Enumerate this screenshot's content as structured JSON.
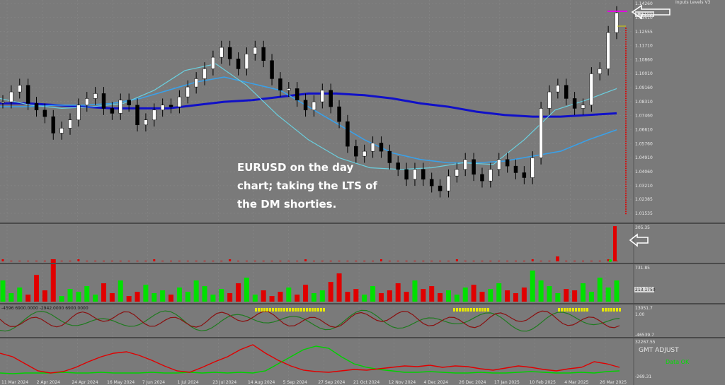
{
  "header": {
    "title": "Inputs Levels V3"
  },
  "annotation": {
    "text": "EURUSD on the day chart; taking the LTS of the DM shorties."
  },
  "colors": {
    "background": "#7a7a7a",
    "grid": "#8c8c8c",
    "candle_up": "#ffffff",
    "candle_down": "#000000",
    "ma_long": "#1010c8",
    "ma_mid": "#3aa0e8",
    "ma_short": "#6ad0e0",
    "up_volume": "#00e000",
    "down_volume": "#e00000",
    "arrow": "#ffffff"
  },
  "icons": {
    "arrow_top": "left-arrow-icon",
    "arrow_mid": "left-arrow-icon"
  },
  "chart_data": {
    "type": "candlestick",
    "symbol": "EURUSD",
    "timeframe": "D1",
    "price_ticks": [
      "1.14260",
      "1.13410",
      "1.12555",
      "1.11710",
      "1.10860",
      "1.10010",
      "1.09160",
      "1.08310",
      "1.07460",
      "1.06610",
      "1.05760",
      "1.04910",
      "1.04060",
      "1.03210",
      "1.02385",
      "1.01535"
    ],
    "current_price": "1.13699",
    "date_ticks": [
      "11 Mar 2024",
      "2 Apr 2024",
      "24 Apr 2024",
      "16 May 2024",
      "7 Jun 2024",
      "1 Jul 2024",
      "23 Jul 2024",
      "14 Aug 2024",
      "5 Sep 2024",
      "27 Sep 2024",
      "21 Oct 2024",
      "12 Nov 2024",
      "4 Dec 2024",
      "26 Dec 2024",
      "17 Jan 2025",
      "10 Feb 2025",
      "4 Mar 2025",
      "26 Mar 2025"
    ],
    "closes_approx": [
      1.083,
      1.089,
      1.093,
      1.082,
      1.078,
      1.074,
      1.064,
      1.067,
      1.072,
      1.081,
      1.085,
      1.088,
      1.079,
      1.076,
      1.084,
      1.081,
      1.069,
      1.072,
      1.078,
      1.081,
      1.08,
      1.086,
      1.092,
      1.097,
      1.103,
      1.11,
      1.116,
      1.109,
      1.103,
      1.112,
      1.116,
      1.108,
      1.097,
      1.09,
      1.091,
      1.084,
      1.078,
      1.083,
      1.09,
      1.08,
      1.071,
      1.056,
      1.05,
      1.053,
      1.058,
      1.053,
      1.046,
      1.042,
      1.036,
      1.042,
      1.036,
      1.032,
      1.029,
      1.038,
      1.042,
      1.048,
      1.039,
      1.035,
      1.042,
      1.048,
      1.044,
      1.04,
      1.037,
      1.049,
      1.079,
      1.089,
      1.093,
      1.085,
      1.079,
      1.081,
      1.1,
      1.103,
      1.125,
      1.137
    ],
    "ma_long_approx": [
      1.082,
      1.082,
      1.081,
      1.08,
      1.079,
      1.079,
      1.079,
      1.081,
      1.083,
      1.084,
      1.086,
      1.088,
      1.088,
      1.087,
      1.085,
      1.082,
      1.08,
      1.077,
      1.075,
      1.074,
      1.074,
      1.075,
      1.076
    ],
    "ma_mid_approx": [
      1.08,
      1.08,
      1.081,
      1.081,
      1.082,
      1.085,
      1.09,
      1.095,
      1.098,
      1.094,
      1.09,
      1.08,
      1.07,
      1.06,
      1.052,
      1.048,
      1.046,
      1.046,
      1.047,
      1.05,
      1.053,
      1.06,
      1.066
    ],
    "ma_short_approx": [
      1.085,
      1.081,
      1.079,
      1.08,
      1.082,
      1.09,
      1.102,
      1.106,
      1.093,
      1.075,
      1.06,
      1.049,
      1.043,
      1.042,
      1.043,
      1.046,
      1.045,
      1.06,
      1.078,
      1.084,
      1.091
    ],
    "panel2_label": "305.35",
    "panel3_labels": [
      "731.85",
      "213.1750"
    ],
    "panel4_header": "-4596 6900.0000 -2942.0000 6900.0000",
    "panel4_labels": [
      "13051.7",
      "1.00",
      "-46539.7"
    ],
    "panel5_labels": [
      "32267.55",
      "-269.31"
    ],
    "panel5_text": [
      "GMT ADJUST",
      "Data OK"
    ]
  }
}
